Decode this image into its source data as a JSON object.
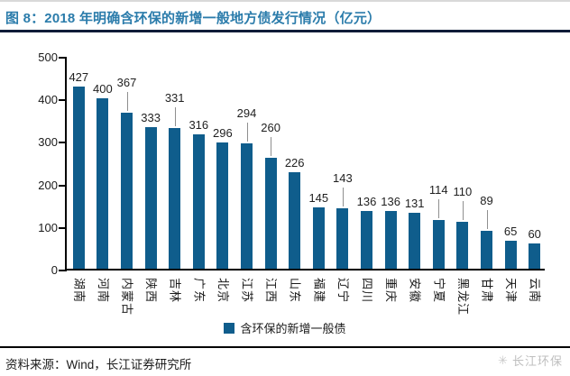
{
  "header": {
    "title": "图 8：2018 年明确含环保的新增一般地方债发行情况（亿元）"
  },
  "footer": {
    "source": "资料来源：Wind，长江证券研究所",
    "watermark": "长江环保",
    "logo_icon": "✳"
  },
  "chart_data": {
    "type": "bar",
    "title": "2018 年明确含环保的新增一般地方债发行情况（亿元）",
    "categories": [
      "湖南",
      "河南",
      "内蒙古",
      "陕西",
      "吉林",
      "广东",
      "北京",
      "江苏",
      "江西",
      "山东",
      "福建",
      "辽宁",
      "四川",
      "重庆",
      "安徽",
      "宁夏",
      "黑龙江",
      "甘肃",
      "天津",
      "云南"
    ],
    "values": [
      427,
      400,
      367,
      333,
      331,
      316,
      296,
      294,
      260,
      226,
      145,
      143,
      136,
      136,
      131,
      114,
      110,
      89,
      65,
      60
    ],
    "callouts": [
      false,
      false,
      true,
      false,
      true,
      false,
      false,
      true,
      true,
      false,
      false,
      true,
      false,
      false,
      false,
      true,
      true,
      true,
      false,
      false
    ],
    "legend": "含环保的新增一般债",
    "legend_position": "bottom",
    "xlabel": "",
    "ylabel": "",
    "unit": "亿元",
    "ylim": [
      0,
      500
    ],
    "yticks": [
      0,
      100,
      200,
      300,
      400,
      500
    ],
    "grid": false,
    "bar_color": "#0f5d8c",
    "label_rotation_deg": 90
  }
}
